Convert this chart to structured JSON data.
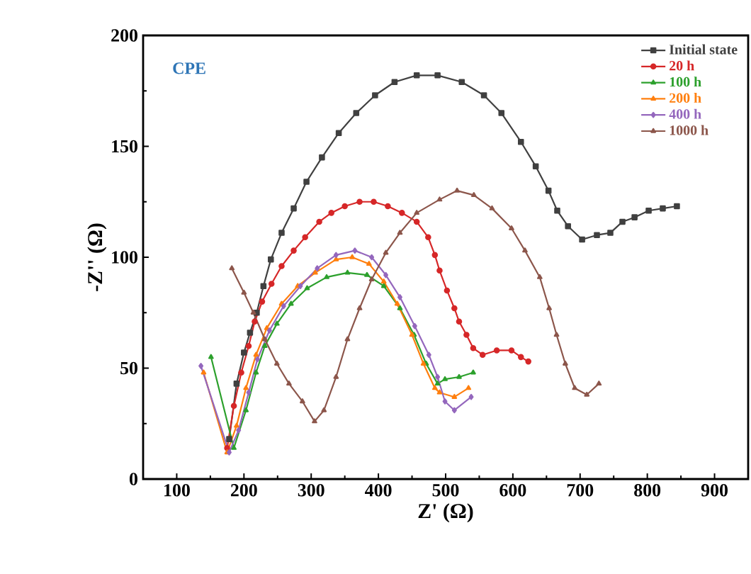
{
  "chart_data": {
    "type": "line",
    "xlabel": "Z' (Ω)",
    "ylabel": "-Z'' (Ω)",
    "annotations": [
      "CPE"
    ],
    "xlim": [
      50,
      950
    ],
    "ylim": [
      0,
      200
    ],
    "xticks": [
      100,
      200,
      300,
      400,
      500,
      600,
      700,
      800,
      900
    ],
    "yticks": [
      0,
      50,
      100,
      150,
      200
    ],
    "grid": false,
    "legend": "top right",
    "line_style": "solid",
    "series": [
      {
        "name": "Initial state",
        "color": "#404040",
        "marker": "square",
        "x": [
          178,
          189,
          200,
          209,
          219,
          229,
          240,
          256,
          274,
          293,
          316,
          341,
          367,
          395,
          424,
          457,
          488,
          524,
          557,
          583,
          612,
          634,
          653,
          666,
          682,
          703,
          725,
          745,
          763,
          781,
          802,
          823,
          844
        ],
        "values": [
          18,
          43,
          57,
          66,
          75,
          87,
          99,
          111,
          122,
          134,
          145,
          156,
          165,
          173,
          179,
          182,
          182,
          179,
          173,
          165,
          152,
          141,
          130,
          121,
          114,
          108,
          110,
          111,
          116,
          118,
          121,
          122,
          123
        ]
      },
      {
        "name": "20 h",
        "color": "#d62728",
        "marker": "circle",
        "x": [
          175,
          185,
          196,
          207,
          216,
          227,
          241,
          256,
          274,
          291,
          312,
          330,
          350,
          372,
          393,
          414,
          435,
          457,
          474,
          484,
          491,
          502,
          513,
          520,
          531,
          541,
          555,
          576,
          598,
          612,
          623
        ],
        "values": [
          14,
          33,
          48,
          60,
          71,
          80,
          88,
          96,
          103,
          109,
          116,
          120,
          123,
          125,
          125,
          123,
          120,
          116,
          109,
          101,
          94,
          85,
          77,
          71,
          65,
          59,
          56,
          58,
          58,
          55,
          53
        ]
      },
      {
        "name": "100 h",
        "color": "#2ca02c",
        "marker": "triangle",
        "x": [
          151,
          185,
          203,
          218,
          231,
          249,
          270,
          294,
          323,
          354,
          383,
          408,
          432,
          453,
          471,
          488,
          499,
          520,
          541
        ],
        "values": [
          55,
          14,
          31,
          48,
          60,
          70,
          79,
          86,
          91,
          93,
          92,
          87,
          77,
          65,
          52,
          43,
          45,
          46,
          48
        ]
      },
      {
        "name": "200 h",
        "color": "#ff7f0e",
        "marker": "triangle",
        "x": [
          140,
          175,
          189,
          203,
          218,
          234,
          256,
          280,
          306,
          337,
          361,
          386,
          408,
          428,
          450,
          467,
          484,
          491,
          513,
          534
        ],
        "values": [
          48,
          12,
          24,
          41,
          56,
          68,
          79,
          87,
          93,
          99,
          100,
          97,
          89,
          79,
          65,
          52,
          41,
          39,
          37,
          41
        ]
      },
      {
        "name": "400 h",
        "color": "#9467bd",
        "marker": "diamond",
        "x": [
          136,
          178,
          192,
          207,
          220,
          238,
          259,
          284,
          309,
          337,
          365,
          390,
          411,
          432,
          454,
          475,
          488,
          499,
          513,
          538
        ],
        "values": [
          51,
          12,
          22,
          39,
          54,
          67,
          78,
          87,
          95,
          101,
          103,
          100,
          92,
          82,
          69,
          56,
          46,
          35,
          31,
          37
        ]
      },
      {
        "name": "1000 h",
        "color": "#8c564b",
        "marker": "triangle",
        "x": [
          182,
          200,
          214,
          231,
          249,
          267,
          287,
          305,
          319,
          337,
          354,
          372,
          390,
          411,
          432,
          457,
          491,
          517,
          542,
          569,
          598,
          618,
          640,
          654,
          665,
          678,
          692,
          710,
          728
        ],
        "values": [
          95,
          84,
          75,
          63,
          52,
          43,
          35,
          26,
          31,
          46,
          63,
          77,
          90,
          102,
          111,
          120,
          126,
          130,
          128,
          122,
          113,
          103,
          91,
          77,
          65,
          52,
          41,
          38,
          43
        ]
      }
    ]
  }
}
